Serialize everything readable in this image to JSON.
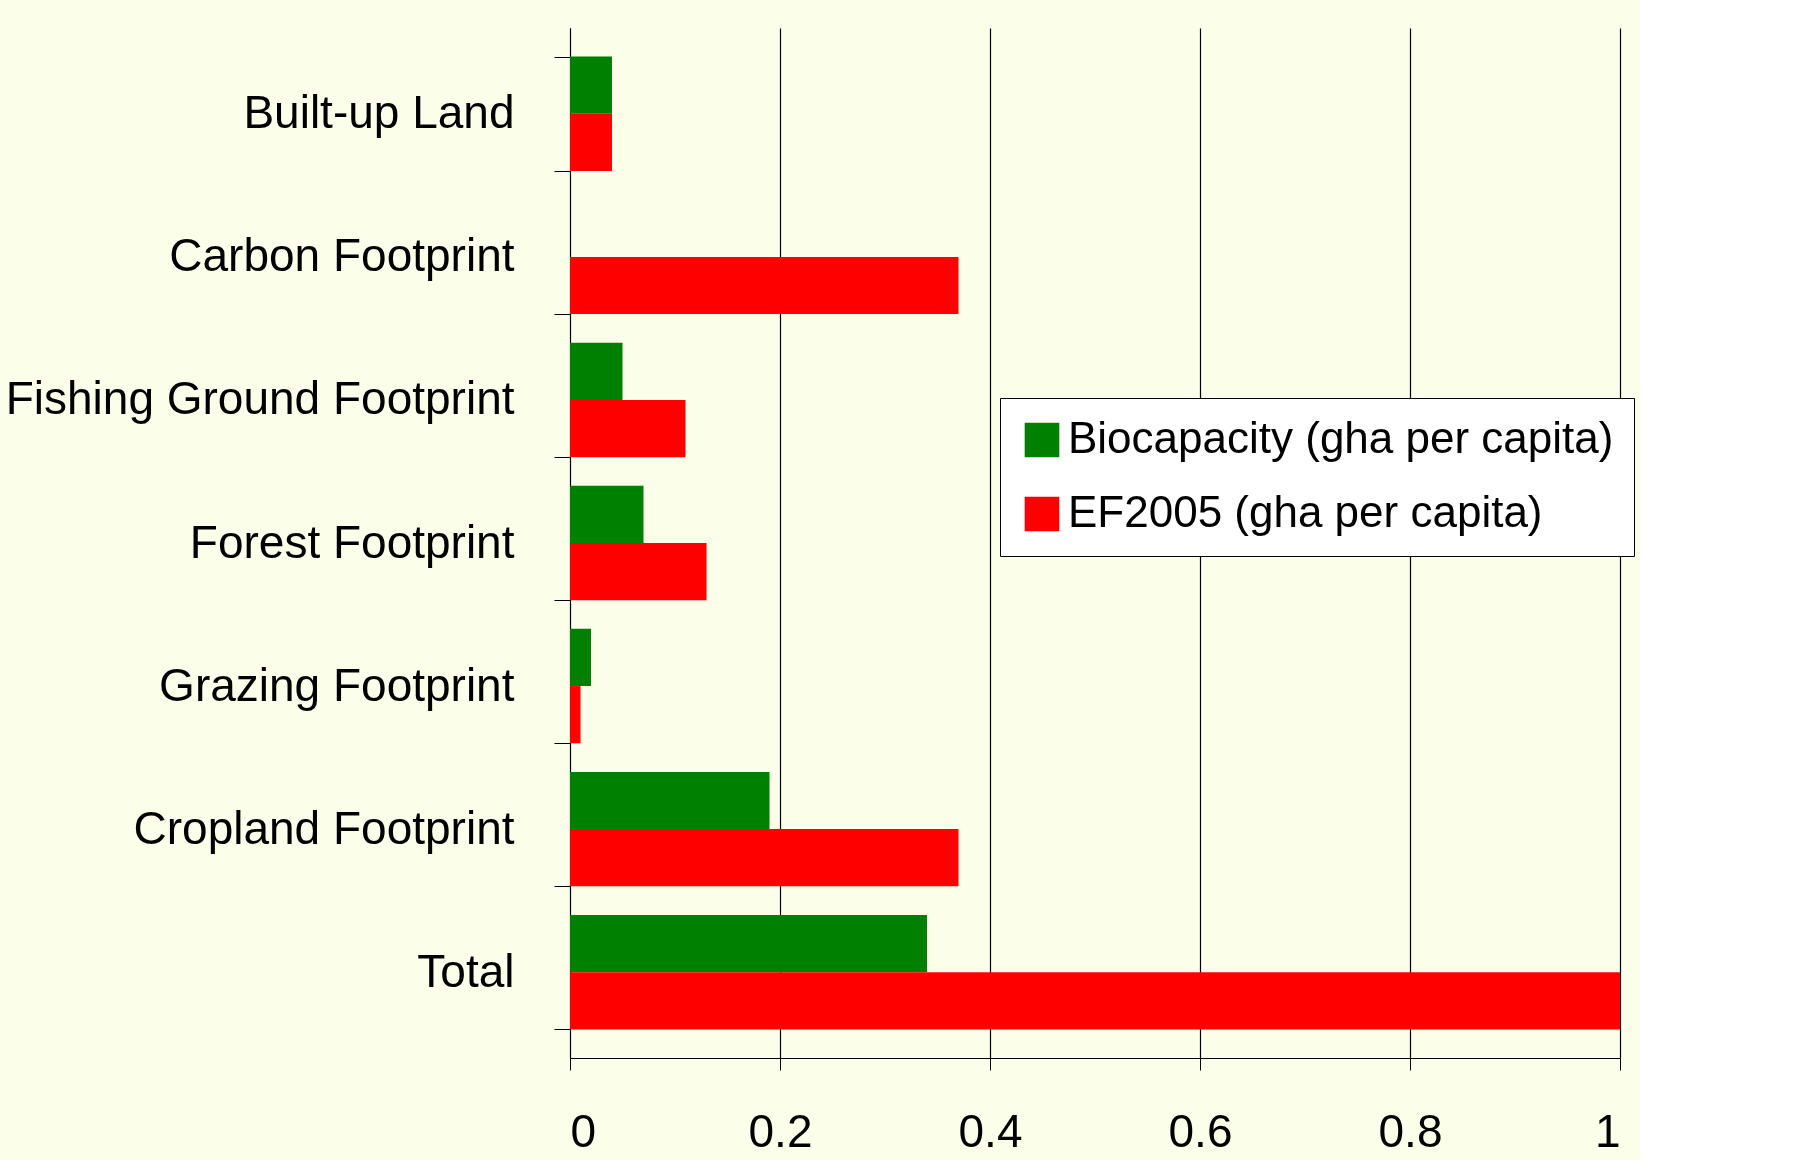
{
  "chart_data": {
    "type": "bar",
    "orientation": "horizontal",
    "categories": [
      "Built-up Land",
      "Carbon Footprint",
      "Fishing Ground Footprint",
      "Forest Footprint",
      "Grazing Footprint",
      "Cropland Footprint",
      "Total"
    ],
    "series": [
      {
        "name": "Biocapacity (gha per capita)",
        "color": "#008000",
        "values": [
          0.04,
          null,
          0.05,
          0.07,
          0.02,
          0.19,
          0.34
        ]
      },
      {
        "name": "EF2005 (gha per capita)",
        "color": "#ff0000",
        "values": [
          0.04,
          0.37,
          0.11,
          0.13,
          0.01,
          0.37,
          1.0
        ]
      }
    ],
    "xlim": [
      0,
      1
    ],
    "xticks": [
      0,
      0.2,
      0.4,
      0.6,
      0.8,
      1
    ],
    "grid": "x",
    "legend": "right"
  }
}
